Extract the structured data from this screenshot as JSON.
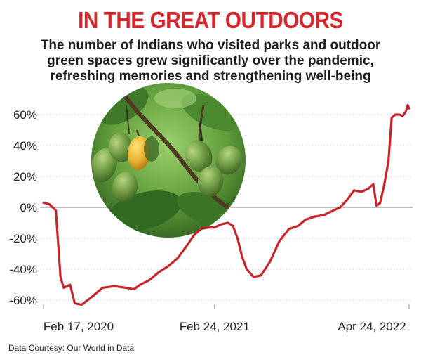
{
  "header": {
    "title": "IN THE GREAT OUTDOORS",
    "subtitle_lines": [
      "The number of Indians who visited parks and outdoor",
      "green spaces grew significantly over the pandemic,",
      "refreshing memories and strengthening well-being"
    ]
  },
  "source": "Data Courtesy: Our World in Data",
  "colors": {
    "title": "#d7262b",
    "line": "#c8242c",
    "zero_line": "#9a9a9a",
    "grid": "#cfcfcf"
  },
  "chart_data": {
    "type": "line",
    "title": "IN THE GREAT OUTDOORS",
    "xlabel": "",
    "ylabel": "",
    "ylim": [
      -65,
      70
    ],
    "yticks": [
      -60,
      -40,
      -20,
      0,
      20,
      40,
      60
    ],
    "ytick_labels": [
      "-60%",
      "-40%",
      "-20%",
      "0%",
      "20%",
      "40%",
      "60%"
    ],
    "xticks": [
      {
        "date": "2020-02-17",
        "label": "Feb 17, 2020"
      },
      {
        "date": "2021-02-24",
        "label": "Feb 24, 2021"
      },
      {
        "date": "2022-04-24",
        "label": "Apr 24, 2022"
      }
    ],
    "grid": "horizontal dotted",
    "legend": "none",
    "series": [
      {
        "values": [
          {
            "x": "2020-02-17",
            "y": 3
          },
          {
            "x": "2020-03-01",
            "y": 2
          },
          {
            "x": "2020-03-15",
            "y": -2
          },
          {
            "x": "2020-03-25",
            "y": -45
          },
          {
            "x": "2020-04-01",
            "y": -52
          },
          {
            "x": "2020-04-15",
            "y": -50
          },
          {
            "x": "2020-04-25",
            "y": -62
          },
          {
            "x": "2020-05-10",
            "y": -63
          },
          {
            "x": "2020-06-01",
            "y": -58
          },
          {
            "x": "2020-06-25",
            "y": -52
          },
          {
            "x": "2020-07-20",
            "y": -51
          },
          {
            "x": "2020-08-15",
            "y": -52
          },
          {
            "x": "2020-09-01",
            "y": -53
          },
          {
            "x": "2020-09-15",
            "y": -50
          },
          {
            "x": "2020-10-05",
            "y": -47
          },
          {
            "x": "2020-10-25",
            "y": -42
          },
          {
            "x": "2020-11-15",
            "y": -38
          },
          {
            "x": "2020-12-05",
            "y": -33
          },
          {
            "x": "2020-12-25",
            "y": -25
          },
          {
            "x": "2021-01-10",
            "y": -18
          },
          {
            "x": "2021-01-25",
            "y": -14
          },
          {
            "x": "2021-02-10",
            "y": -13
          },
          {
            "x": "2021-02-24",
            "y": -13
          },
          {
            "x": "2021-03-10",
            "y": -11
          },
          {
            "x": "2021-03-25",
            "y": -10
          },
          {
            "x": "2021-04-05",
            "y": -12
          },
          {
            "x": "2021-04-15",
            "y": -20
          },
          {
            "x": "2021-04-25",
            "y": -32
          },
          {
            "x": "2021-05-05",
            "y": -40
          },
          {
            "x": "2021-05-20",
            "y": -45
          },
          {
            "x": "2021-06-05",
            "y": -44
          },
          {
            "x": "2021-06-25",
            "y": -35
          },
          {
            "x": "2021-07-15",
            "y": -22
          },
          {
            "x": "2021-08-05",
            "y": -14
          },
          {
            "x": "2021-08-25",
            "y": -12
          },
          {
            "x": "2021-09-10",
            "y": -8
          },
          {
            "x": "2021-09-30",
            "y": -6
          },
          {
            "x": "2021-10-20",
            "y": -5
          },
          {
            "x": "2021-11-10",
            "y": -2
          },
          {
            "x": "2021-11-25",
            "y": 0
          },
          {
            "x": "2021-12-10",
            "y": 5
          },
          {
            "x": "2021-12-25",
            "y": 11
          },
          {
            "x": "2022-01-10",
            "y": 10
          },
          {
            "x": "2022-01-25",
            "y": 12
          },
          {
            "x": "2022-02-05",
            "y": 15
          },
          {
            "x": "2022-02-12",
            "y": 1
          },
          {
            "x": "2022-02-20",
            "y": 3
          },
          {
            "x": "2022-03-01",
            "y": 15
          },
          {
            "x": "2022-03-10",
            "y": 30
          },
          {
            "x": "2022-03-17",
            "y": 58
          },
          {
            "x": "2022-03-25",
            "y": 60
          },
          {
            "x": "2022-04-03",
            "y": 60
          },
          {
            "x": "2022-04-10",
            "y": 59
          },
          {
            "x": "2022-04-17",
            "y": 62
          },
          {
            "x": "2022-04-21",
            "y": 66
          },
          {
            "x": "2022-04-24",
            "y": 64
          }
        ]
      }
    ]
  }
}
